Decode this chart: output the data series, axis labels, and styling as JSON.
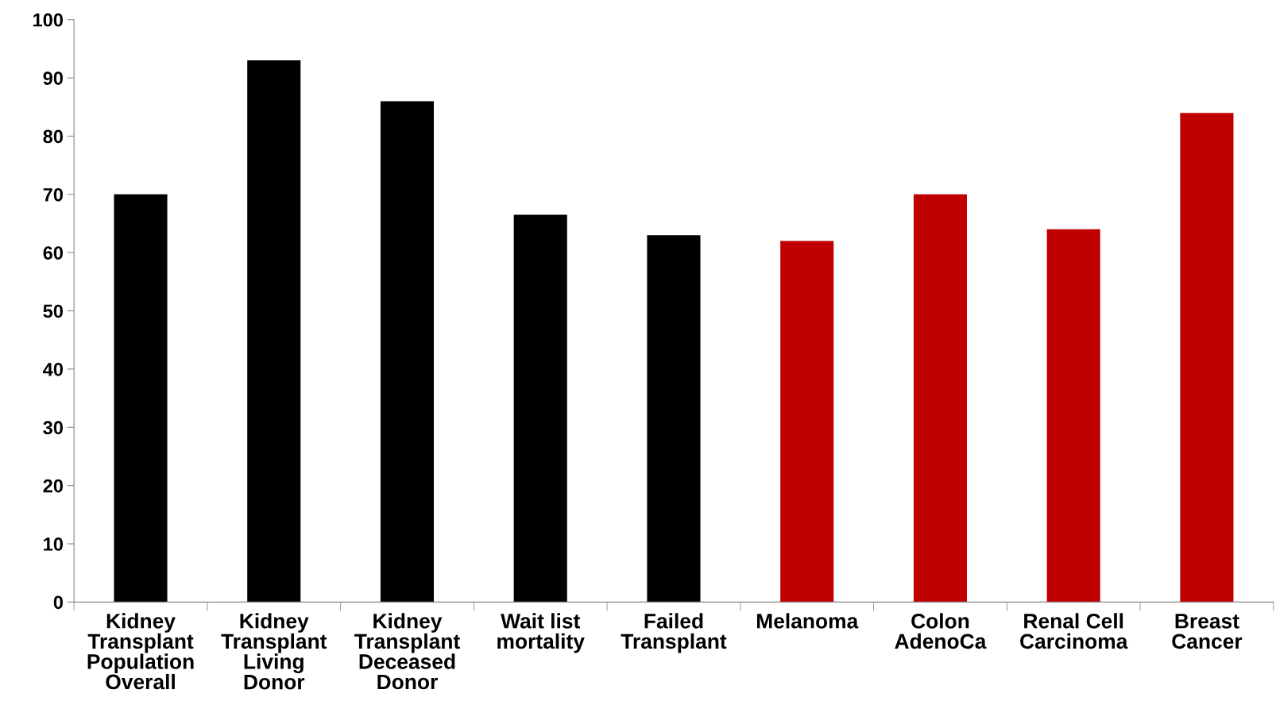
{
  "chart_data": {
    "type": "bar",
    "categories": [
      "Kidney\nTransplant\nPopulation\nOverall",
      "Kidney\nTransplant\nLiving\nDonor",
      "Kidney\nTransplant\nDeceased\nDonor",
      "Wait list\nmortality",
      "Failed\nTransplant",
      "Melanoma",
      "Colon\nAdenoCa",
      "Renal Cell\nCarcinoma",
      "Breast\nCancer"
    ],
    "values": [
      70,
      93,
      86,
      66.5,
      63,
      62,
      70,
      64,
      84
    ],
    "colors": [
      "#000000",
      "#000000",
      "#000000",
      "#000000",
      "#000000",
      "#c00000",
      "#c00000",
      "#c00000",
      "#c00000"
    ],
    "ylim": [
      0,
      100
    ],
    "yticks": [
      0,
      10,
      20,
      30,
      40,
      50,
      60,
      70,
      80,
      90,
      100
    ],
    "grid": false,
    "legend": false
  }
}
